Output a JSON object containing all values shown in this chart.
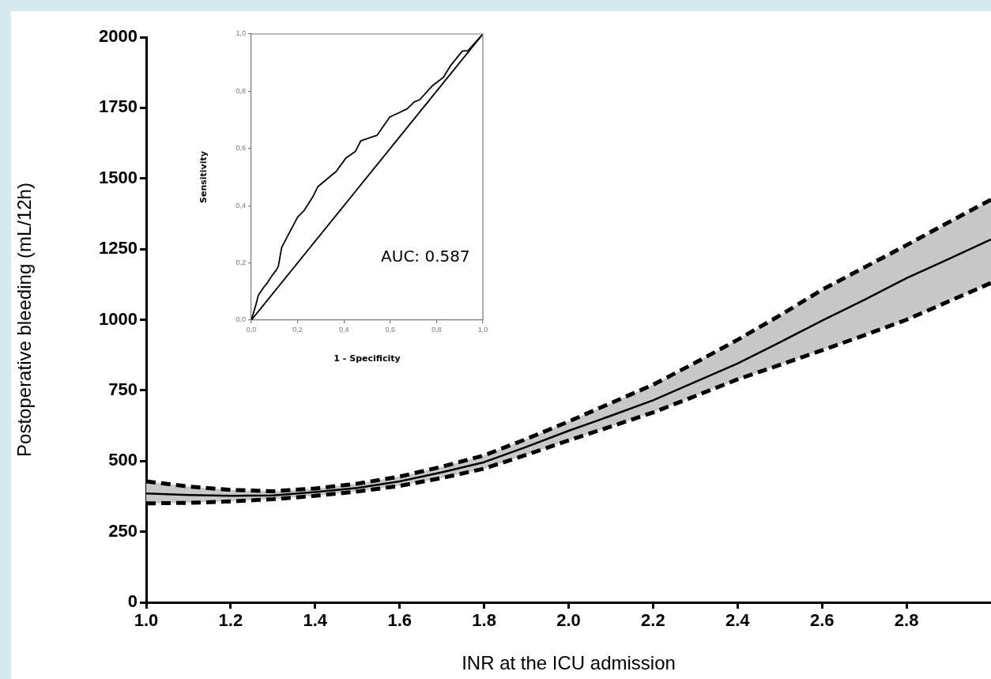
{
  "chart_data": [
    {
      "type": "line",
      "xlabel": "INR at the ICU admission",
      "ylabel": "Postoperative bleeding (mL/12h)",
      "x": [
        1.0,
        1.1,
        1.2,
        1.3,
        1.4,
        1.5,
        1.6,
        1.7,
        1.8,
        1.9,
        2.0,
        2.1,
        2.2,
        2.3,
        2.4,
        2.5,
        2.6,
        2.7,
        2.8,
        2.9,
        3.0
      ],
      "series": [
        {
          "color": "#000000",
          "line_style": "solid",
          "values": [
            385,
            380,
            377,
            378,
            390,
            405,
            428,
            460,
            496,
            550,
            607,
            660,
            715,
            780,
            845,
            920,
            997,
            1070,
            1147,
            1215,
            1284
          ],
          "lower": [
            350,
            352,
            357,
            365,
            377,
            392,
            412,
            440,
            473,
            522,
            573,
            622,
            672,
            730,
            789,
            840,
            892,
            945,
            1000,
            1065,
            1130
          ],
          "upper": [
            428,
            410,
            398,
            393,
            403,
            420,
            445,
            480,
            520,
            578,
            640,
            705,
            770,
            848,
            929,
            1015,
            1106,
            1185,
            1264,
            1345,
            1425
          ]
        },
        {
          "color": "#000000",
          "line_style": "dashed",
          "values": [
            350,
            352,
            357,
            365,
            377,
            392,
            412,
            440,
            473,
            522,
            573,
            622,
            672,
            730,
            789,
            840,
            892,
            945,
            1000,
            1065,
            1130
          ]
        },
        {
          "color": "#000000",
          "line_style": "dashed",
          "values": [
            428,
            410,
            398,
            393,
            403,
            420,
            445,
            480,
            520,
            578,
            640,
            705,
            770,
            848,
            929,
            1015,
            1106,
            1185,
            1264,
            1345,
            1425
          ]
        }
      ],
      "xlim": [
        1.0,
        3.0
      ],
      "ylim": [
        0,
        2000
      ],
      "xticks": [
        {
          "value": 1.0,
          "label": "1.0"
        },
        {
          "value": 1.2,
          "label": "1.2"
        },
        {
          "value": 1.4,
          "label": "1.4"
        },
        {
          "value": 1.6,
          "label": "1.6"
        },
        {
          "value": 1.8,
          "label": "1.8"
        },
        {
          "value": 2.0,
          "label": "2.0"
        },
        {
          "value": 2.2,
          "label": "2.2"
        },
        {
          "value": 2.4,
          "label": "2.4"
        },
        {
          "value": 2.6,
          "label": "2.6"
        },
        {
          "value": 2.8,
          "label": "2.8"
        }
      ],
      "yticks": [
        0,
        250,
        500,
        750,
        1000,
        1250,
        1500,
        1750,
        2000
      ],
      "grid": false,
      "legend": false,
      "marker": "none"
    },
    {
      "type": "line",
      "xlabel": "1 - Specificity",
      "ylabel": "Sensitivity",
      "annotations": [
        "AUC: 0.587"
      ],
      "series": [
        {
          "color": "#000000",
          "x": [
            0,
            0.011,
            0.02,
            0.03,
            0.053,
            0.067,
            0.09,
            0.108,
            0.117,
            0.131,
            0.164,
            0.2,
            0.228,
            0.265,
            0.288,
            0.33,
            0.367,
            0.408,
            0.45,
            0.473,
            0.543,
            0.598,
            0.672,
            0.704,
            0.727,
            0.783,
            0.829,
            0.861,
            0.912,
            0.935,
            1.0
          ],
          "values": [
            0,
            0.03,
            0.054,
            0.086,
            0.114,
            0.128,
            0.156,
            0.175,
            0.189,
            0.254,
            0.305,
            0.36,
            0.383,
            0.43,
            0.467,
            0.495,
            0.52,
            0.566,
            0.59,
            0.627,
            0.646,
            0.71,
            0.738,
            0.763,
            0.77,
            0.82,
            0.848,
            0.89,
            0.941,
            0.941,
            1.0
          ]
        },
        {
          "color": "#000000",
          "x": [
            0,
            1
          ],
          "values": [
            0,
            1
          ]
        }
      ],
      "xlim": [
        0,
        1
      ],
      "ylim": [
        0,
        1
      ],
      "xticks": [
        {
          "value": 0,
          "label": "0,0"
        },
        {
          "value": 0.2,
          "label": "0,2"
        },
        {
          "value": 0.4,
          "label": "0,4"
        },
        {
          "value": 0.6,
          "label": "0,6"
        },
        {
          "value": 0.8,
          "label": "0,8"
        },
        {
          "value": 1.0,
          "label": "1,0"
        }
      ],
      "yticks": [
        {
          "value": 0,
          "label": "0,0"
        },
        {
          "value": 0.2,
          "label": "0,2"
        },
        {
          "value": 0.4,
          "label": "0,4"
        },
        {
          "value": 0.6,
          "label": "0,6"
        },
        {
          "value": 0.8,
          "label": "0,8"
        },
        {
          "value": 1.0,
          "label": "1,0"
        }
      ],
      "grid": false,
      "legend": false,
      "marker": "none"
    }
  ]
}
